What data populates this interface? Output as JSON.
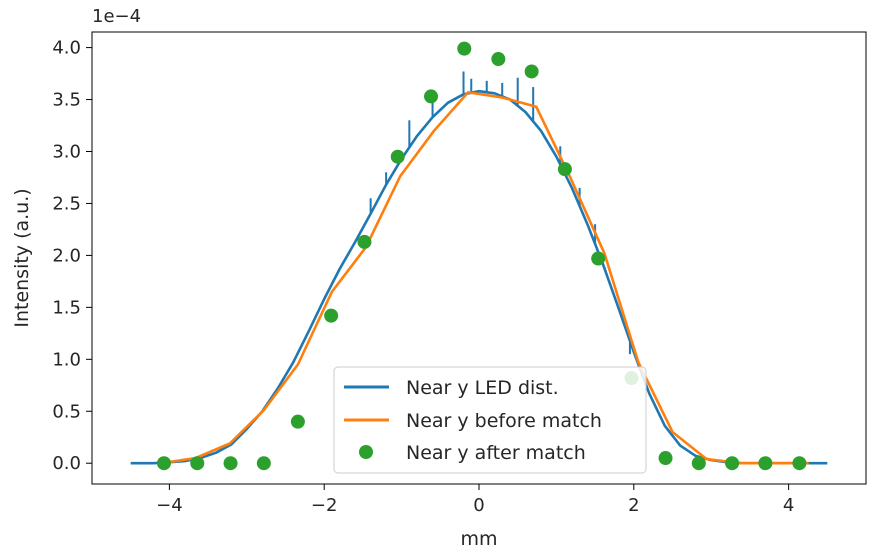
{
  "chart_data": {
    "type": "line",
    "xlabel": "mm",
    "ylabel": "Intensity (a.u.)",
    "y_offset_text": "1e−4",
    "xlim": [
      -5.0,
      5.0
    ],
    "ylim": [
      -0.2,
      4.15
    ],
    "x_ticks": [
      -4,
      -2,
      0,
      2,
      4
    ],
    "x_tick_labels": [
      "−4",
      "−2",
      "0",
      "2",
      "4"
    ],
    "y_ticks": [
      0.0,
      0.5,
      1.0,
      1.5,
      2.0,
      2.5,
      3.0,
      3.5,
      4.0
    ],
    "y_tick_labels": [
      "0.0",
      "0.5",
      "1.0",
      "1.5",
      "2.0",
      "2.5",
      "3.0",
      "3.5",
      "4.0"
    ],
    "y_unit_multiplier": "1e-4",
    "grid": false,
    "legend_position": "lower-center",
    "series": [
      {
        "name": "Near y LED dist.",
        "kind": "line",
        "color": "#1f77b4",
        "x": [
          -4.5,
          -4.2,
          -4.0,
          -3.8,
          -3.6,
          -3.4,
          -3.2,
          -3.0,
          -2.8,
          -2.6,
          -2.4,
          -2.2,
          -2.0,
          -1.8,
          -1.6,
          -1.4,
          -1.2,
          -1.0,
          -0.8,
          -0.6,
          -0.4,
          -0.2,
          0.0,
          0.2,
          0.4,
          0.6,
          0.8,
          1.0,
          1.2,
          1.4,
          1.6,
          1.8,
          2.0,
          2.2,
          2.4,
          2.6,
          2.8,
          3.0,
          3.2,
          3.4,
          3.6,
          3.8,
          4.0,
          4.2,
          4.5
        ],
        "y": [
          0.0,
          0.0,
          0.01,
          0.02,
          0.05,
          0.1,
          0.18,
          0.33,
          0.5,
          0.72,
          0.97,
          1.27,
          1.58,
          1.87,
          2.13,
          2.4,
          2.68,
          2.93,
          3.15,
          3.33,
          3.47,
          3.55,
          3.58,
          3.56,
          3.5,
          3.38,
          3.2,
          2.95,
          2.65,
          2.3,
          1.92,
          1.5,
          1.07,
          0.67,
          0.36,
          0.17,
          0.07,
          0.03,
          0.01,
          0.0,
          0.0,
          0.0,
          0.0,
          0.0,
          0.0
        ],
        "spikes": [
          {
            "x": -0.2,
            "y": 3.77
          },
          {
            "x": -0.1,
            "y": 3.7
          },
          {
            "x": 0.1,
            "y": 3.68
          },
          {
            "x": 0.3,
            "y": 3.66
          },
          {
            "x": 0.5,
            "y": 3.71
          },
          {
            "x": 0.7,
            "y": 3.62
          },
          {
            "x": -0.6,
            "y": 3.5
          },
          {
            "x": -0.9,
            "y": 3.3
          },
          {
            "x": -1.2,
            "y": 2.8
          },
          {
            "x": -1.4,
            "y": 2.55
          },
          {
            "x": -1.7,
            "y": 2.0
          },
          {
            "x": 1.05,
            "y": 3.05
          },
          {
            "x": 1.3,
            "y": 2.65
          },
          {
            "x": 1.5,
            "y": 2.3
          },
          {
            "x": 1.95,
            "y": 1.05
          },
          {
            "x": -2.4,
            "y": 0.98
          }
        ]
      },
      {
        "name": "Near y before match",
        "kind": "line",
        "color": "#ff7f0e",
        "x": [
          -4.1,
          -3.66,
          -3.22,
          -2.78,
          -2.34,
          -1.9,
          -1.46,
          -1.02,
          -0.58,
          -0.14,
          0.3,
          0.74,
          1.18,
          1.62,
          2.06,
          2.5,
          2.94,
          3.38,
          3.82,
          4.26
        ],
        "y": [
          0.0,
          0.05,
          0.19,
          0.51,
          0.95,
          1.65,
          2.08,
          2.76,
          3.2,
          3.57,
          3.52,
          3.43,
          2.75,
          2.02,
          0.97,
          0.3,
          0.04,
          0.0,
          0.0,
          0.0
        ]
      },
      {
        "name": "Near y after match",
        "kind": "scatter",
        "color": "#2ca02c",
        "x": [
          -4.07,
          -3.64,
          -3.21,
          -2.78,
          -2.34,
          -1.91,
          -1.48,
          -1.05,
          -0.62,
          -0.19,
          0.25,
          0.68,
          1.11,
          1.54,
          1.97,
          2.41,
          2.84,
          3.27,
          3.7,
          4.14
        ],
        "y": [
          0.0,
          0.0,
          0.0,
          0.0,
          0.4,
          1.42,
          2.13,
          2.95,
          3.53,
          3.99,
          3.89,
          3.77,
          2.83,
          1.97,
          0.82,
          0.05,
          0.0,
          0.0,
          0.0,
          0.0
        ]
      }
    ]
  }
}
